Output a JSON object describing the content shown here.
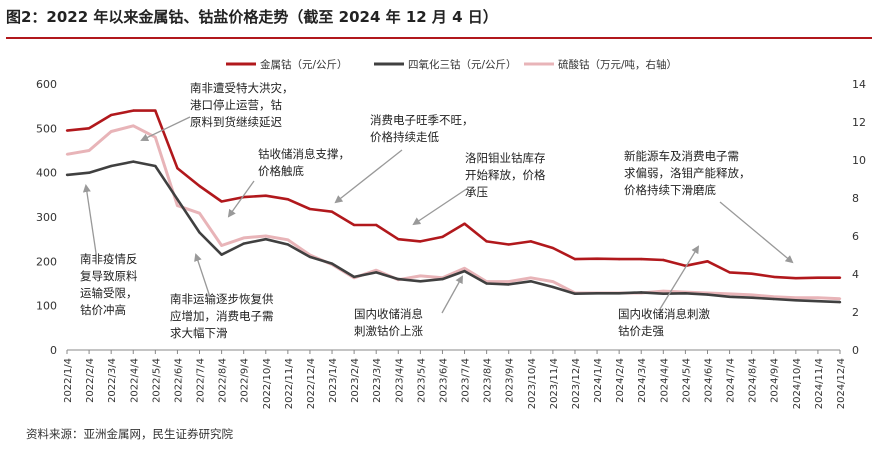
{
  "page": {
    "title": "图2：2022 年以来金属钴、钴盐价格走势（截至 2024 年 12 月 4 日）",
    "source": "资料来源：亚洲金属网，民生证券研究院"
  },
  "colors": {
    "cobalt_metal": "#b1181c",
    "cobalt_trioxide": "#404040",
    "cobalt_sulfate": "#e8b4b8",
    "title_rule": "#b1181c"
  },
  "chart_data": {
    "type": "line",
    "x": [
      "2022/1/4",
      "2022/2/4",
      "2022/3/4",
      "2022/4/4",
      "2022/5/4",
      "2022/6/4",
      "2022/7/4",
      "2022/8/4",
      "2022/9/4",
      "2022/10/4",
      "2022/11/4",
      "2022/12/4",
      "2023/1/4",
      "2023/2/4",
      "2023/3/4",
      "2023/4/4",
      "2023/5/4",
      "2023/6/4",
      "2023/7/4",
      "2023/8/4",
      "2023/9/4",
      "2023/10/4",
      "2023/11/4",
      "2023/12/4",
      "2024/1/4",
      "2024/2/4",
      "2024/3/4",
      "2024/4/4",
      "2024/5/4",
      "2024/6/4",
      "2024/7/4",
      "2024/8/4",
      "2024/9/4",
      "2024/10/4",
      "2024/11/4",
      "2024/12/4"
    ],
    "series": [
      {
        "name": "金属钴（元/公斤）",
        "axis": "left",
        "values": [
          495,
          500,
          530,
          540,
          540,
          410,
          370,
          335,
          345,
          348,
          340,
          318,
          312,
          282,
          282,
          250,
          245,
          255,
          285,
          245,
          238,
          245,
          230,
          205,
          206,
          205,
          205,
          203,
          190,
          200,
          175,
          172,
          165,
          162,
          163,
          163
        ]
      },
      {
        "name": "四氧化三钴（元/公斤）",
        "axis": "left",
        "values": [
          395,
          400,
          415,
          425,
          415,
          340,
          265,
          215,
          240,
          250,
          238,
          210,
          195,
          165,
          175,
          160,
          155,
          160,
          178,
          150,
          148,
          155,
          142,
          127,
          128,
          128,
          130,
          127,
          128,
          125,
          120,
          118,
          115,
          112,
          110,
          108
        ]
      },
      {
        "name": "硫酸钴（万元/吨，右轴）",
        "axis": "right",
        "values": [
          10.3,
          10.5,
          11.5,
          11.8,
          11.2,
          7.6,
          7.2,
          5.5,
          5.9,
          6.0,
          5.8,
          5.0,
          4.5,
          3.8,
          4.2,
          3.7,
          3.9,
          3.8,
          4.3,
          3.6,
          3.6,
          3.8,
          3.6,
          3.0,
          3.0,
          3.0,
          3.0,
          3.1,
          3.05,
          3.0,
          2.95,
          2.9,
          2.8,
          2.75,
          2.75,
          2.7
        ]
      }
    ],
    "ylim": [
      0,
      600
    ],
    "y_ticks": [
      "0",
      "100",
      "200",
      "300",
      "400",
      "500",
      "600"
    ],
    "y2lim": [
      0,
      14
    ],
    "y2_ticks": [
      "0",
      "2",
      "4",
      "6",
      "8",
      "10",
      "12",
      "14"
    ],
    "grid": false,
    "legend": "top",
    "annotations": [
      {
        "lines": [
          "南非遭受特大洪灾，",
          "港口停止运营，钴",
          "原料到货继续延迟"
        ]
      },
      {
        "lines": [
          "消费电子旺季不旺，",
          "价格持续走低"
        ]
      },
      {
        "lines": [
          "钴收储消息支撑，",
          "价格触底"
        ]
      },
      {
        "lines": [
          "洛阳钼业钴库存",
          "开始释放，价格",
          "承压"
        ]
      },
      {
        "lines": [
          "新能源车及消费电子需",
          "求偏弱，洛钼产能释放，",
          "价格持续下滑磨底"
        ]
      },
      {
        "lines": [
          "南非疫情反",
          "复导致原料",
          "运输受限，",
          "钴价冲高"
        ]
      },
      {
        "lines": [
          "南非运输逐步恢复供",
          "应增加，消费电子需",
          "求大幅下滑"
        ]
      },
      {
        "lines": [
          "国内收储消息",
          "刺激钴价上涨"
        ]
      },
      {
        "lines": [
          "国内收储消息刺激",
          "钴价走强"
        ]
      }
    ]
  }
}
